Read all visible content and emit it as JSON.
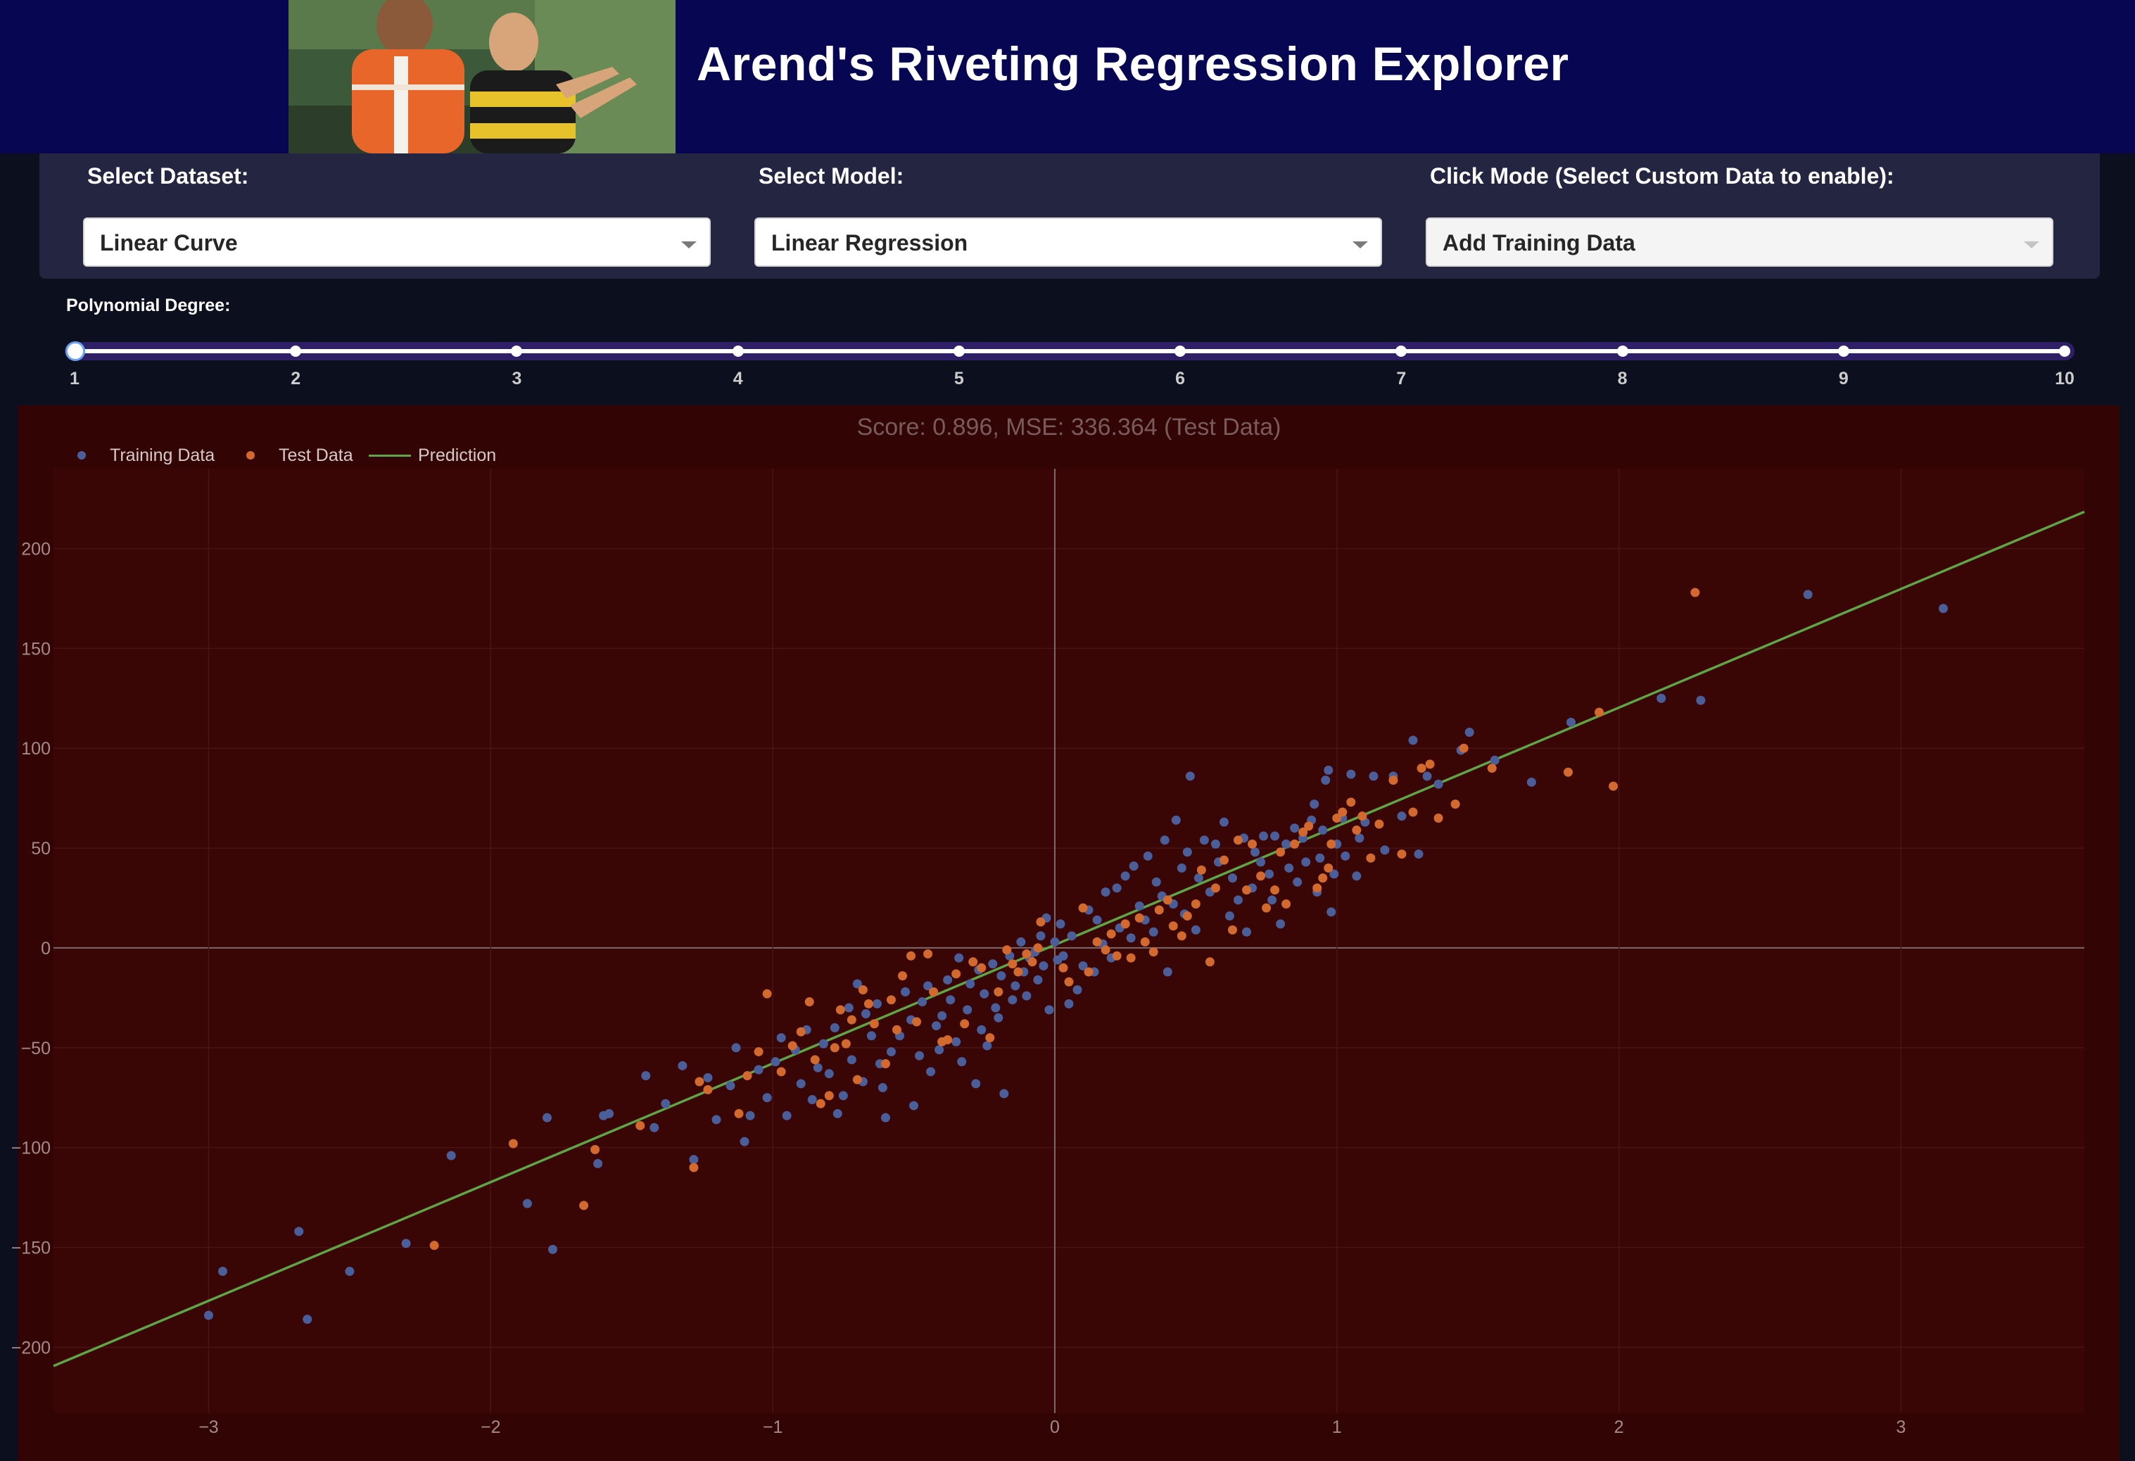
{
  "app": {
    "title": "Arend's Riveting Regression Explorer"
  },
  "controls": {
    "dataset": {
      "label": "Select Dataset:",
      "value": "Linear Curve"
    },
    "model": {
      "label": "Select Model:",
      "value": "Linear Regression"
    },
    "click_mode": {
      "label": "Click Mode (Select Custom Data to enable):",
      "value": "Add Training Data",
      "disabled": true
    }
  },
  "slider": {
    "label": "Polynomial Degree:",
    "min": 1,
    "max": 10,
    "value": 1,
    "marks": [
      "1",
      "2",
      "3",
      "4",
      "5",
      "6",
      "7",
      "8",
      "9",
      "10"
    ]
  },
  "legend": {
    "training": "Training Data",
    "test": "Test Data",
    "prediction": "Prediction"
  },
  "colors": {
    "banner": "#060653",
    "panel": "#232541",
    "plot_bg": "#3a0505",
    "training": "#4a5f9a",
    "test": "#d2692e",
    "prediction": "#5fa546"
  },
  "chart_data": {
    "type": "scatter",
    "title": "Score: 0.896, MSE: 336.364 (Test Data)",
    "xlabel": "",
    "ylabel": "",
    "xlim": [
      -3.55,
      3.65
    ],
    "ylim": [
      -233,
      240
    ],
    "xticks": [
      -3,
      -2,
      -1,
      0,
      1,
      2,
      3
    ],
    "xtick_labels": [
      "−3",
      "−2",
      "−1",
      "0",
      "1",
      "2",
      "3"
    ],
    "yticks": [
      -200,
      -150,
      -100,
      -50,
      0,
      50,
      100,
      150,
      200
    ],
    "ytick_labels": [
      "−200",
      "−150",
      "−100",
      "−50",
      "0",
      "50",
      "100",
      "150",
      "200"
    ],
    "grid": true,
    "legend_position": "top-left",
    "series": [
      {
        "name": "Training Data",
        "mode": "markers",
        "points": [
          [
            -3.0,
            -184
          ],
          [
            -2.95,
            -162
          ],
          [
            -2.68,
            -142
          ],
          [
            -2.65,
            -186
          ],
          [
            -2.5,
            -162
          ],
          [
            -2.3,
            -148
          ],
          [
            -2.14,
            -104
          ],
          [
            -1.87,
            -128
          ],
          [
            -1.8,
            -85
          ],
          [
            -1.78,
            -151
          ],
          [
            -1.62,
            -108
          ],
          [
            -1.6,
            -84
          ],
          [
            -1.58,
            -83
          ],
          [
            -1.45,
            -64
          ],
          [
            -1.42,
            -90
          ],
          [
            -1.38,
            -78
          ],
          [
            -1.32,
            -59
          ],
          [
            -1.28,
            -106
          ],
          [
            -1.23,
            -65
          ],
          [
            -1.2,
            -86
          ],
          [
            -1.15,
            -69
          ],
          [
            -1.13,
            -50
          ],
          [
            -1.1,
            -97
          ],
          [
            -1.08,
            -84
          ],
          [
            -1.05,
            -61
          ],
          [
            -1.02,
            -75
          ],
          [
            -0.99,
            -57
          ],
          [
            -0.97,
            -45
          ],
          [
            -0.95,
            -84
          ],
          [
            -0.92,
            -51
          ],
          [
            -0.9,
            -68
          ],
          [
            -0.88,
            -41
          ],
          [
            -0.86,
            -76
          ],
          [
            -0.84,
            -60
          ],
          [
            -0.82,
            -48
          ],
          [
            -0.8,
            -63
          ],
          [
            -0.78,
            -40
          ],
          [
            -0.77,
            -83
          ],
          [
            -0.75,
            -74
          ],
          [
            -0.73,
            -30
          ],
          [
            -0.72,
            -56
          ],
          [
            -0.7,
            -18
          ],
          [
            -0.68,
            -67
          ],
          [
            -0.67,
            -33
          ],
          [
            -0.65,
            -44
          ],
          [
            -0.63,
            -28
          ],
          [
            -0.62,
            -58
          ],
          [
            -0.61,
            -70
          ],
          [
            -0.6,
            -85
          ],
          [
            -0.58,
            -52
          ],
          [
            -0.55,
            -44
          ],
          [
            -0.53,
            -22
          ],
          [
            -0.51,
            -36
          ],
          [
            -0.5,
            -79
          ],
          [
            -0.48,
            -54
          ],
          [
            -0.47,
            -27
          ],
          [
            -0.45,
            -19
          ],
          [
            -0.44,
            -62
          ],
          [
            -0.42,
            -39
          ],
          [
            -0.41,
            -51
          ],
          [
            -0.4,
            -34
          ],
          [
            -0.38,
            -16
          ],
          [
            -0.37,
            -26
          ],
          [
            -0.35,
            -47
          ],
          [
            -0.34,
            -5
          ],
          [
            -0.33,
            -57
          ],
          [
            -0.31,
            -31
          ],
          [
            -0.3,
            -18
          ],
          [
            -0.28,
            -68
          ],
          [
            -0.27,
            -11
          ],
          [
            -0.26,
            -41
          ],
          [
            -0.25,
            -23
          ],
          [
            -0.24,
            -49
          ],
          [
            -0.22,
            -8
          ],
          [
            -0.21,
            -30
          ],
          [
            -0.2,
            -35
          ],
          [
            -0.19,
            -14
          ],
          [
            -0.18,
            -73
          ],
          [
            -0.16,
            -4
          ],
          [
            -0.15,
            -26
          ],
          [
            -0.14,
            -19
          ],
          [
            -0.12,
            3
          ],
          [
            -0.11,
            -12
          ],
          [
            -0.1,
            -24
          ],
          [
            -0.09,
            -5
          ],
          [
            -0.07,
            -2
          ],
          [
            -0.06,
            -16
          ],
          [
            -0.05,
            6
          ],
          [
            -0.04,
            -9
          ],
          [
            -0.03,
            15
          ],
          [
            -0.02,
            -31
          ],
          [
            0.0,
            3
          ],
          [
            0.01,
            -6
          ],
          [
            0.02,
            12
          ],
          [
            0.03,
            -4
          ],
          [
            0.05,
            -28
          ],
          [
            0.06,
            6
          ],
          [
            0.08,
            -21
          ],
          [
            0.1,
            -9
          ],
          [
            0.12,
            19
          ],
          [
            0.14,
            -12
          ],
          [
            0.15,
            14
          ],
          [
            0.17,
            2
          ],
          [
            0.18,
            28
          ],
          [
            0.2,
            -5
          ],
          [
            0.22,
            30
          ],
          [
            0.23,
            10
          ],
          [
            0.25,
            36
          ],
          [
            0.27,
            5
          ],
          [
            0.28,
            41
          ],
          [
            0.3,
            21
          ],
          [
            0.32,
            14
          ],
          [
            0.33,
            46
          ],
          [
            0.35,
            8
          ],
          [
            0.36,
            33
          ],
          [
            0.38,
            26
          ],
          [
            0.39,
            54
          ],
          [
            0.4,
            -12
          ],
          [
            0.42,
            22
          ],
          [
            0.43,
            64
          ],
          [
            0.45,
            40
          ],
          [
            0.46,
            17
          ],
          [
            0.47,
            48
          ],
          [
            0.48,
            86
          ],
          [
            0.5,
            9
          ],
          [
            0.51,
            35
          ],
          [
            0.53,
            54
          ],
          [
            0.55,
            28
          ],
          [
            0.57,
            52
          ],
          [
            0.58,
            43
          ],
          [
            0.6,
            63
          ],
          [
            0.62,
            16
          ],
          [
            0.63,
            35
          ],
          [
            0.65,
            24
          ],
          [
            0.67,
            55
          ],
          [
            0.68,
            8
          ],
          [
            0.7,
            30
          ],
          [
            0.71,
            48
          ],
          [
            0.73,
            43
          ],
          [
            0.74,
            56
          ],
          [
            0.76,
            37
          ],
          [
            0.77,
            24
          ],
          [
            0.78,
            56
          ],
          [
            0.8,
            12
          ],
          [
            0.82,
            52
          ],
          [
            0.83,
            40
          ],
          [
            0.85,
            60
          ],
          [
            0.86,
            33
          ],
          [
            0.88,
            55
          ],
          [
            0.89,
            43
          ],
          [
            0.91,
            64
          ],
          [
            0.92,
            72
          ],
          [
            0.93,
            28
          ],
          [
            0.94,
            45
          ],
          [
            0.95,
            59
          ],
          [
            0.96,
            84
          ],
          [
            0.97,
            89
          ],
          [
            0.98,
            18
          ],
          [
            0.99,
            37
          ],
          [
            1.0,
            52
          ],
          [
            1.02,
            65
          ],
          [
            1.03,
            46
          ],
          [
            1.05,
            87
          ],
          [
            1.07,
            36
          ],
          [
            1.08,
            55
          ],
          [
            1.1,
            63
          ],
          [
            1.13,
            86
          ],
          [
            1.17,
            49
          ],
          [
            1.2,
            86
          ],
          [
            1.23,
            66
          ],
          [
            1.27,
            104
          ],
          [
            1.29,
            47
          ],
          [
            1.32,
            86
          ],
          [
            1.36,
            82
          ],
          [
            1.44,
            99
          ],
          [
            1.47,
            108
          ],
          [
            1.56,
            94
          ],
          [
            1.69,
            83
          ],
          [
            1.83,
            113
          ],
          [
            2.15,
            125
          ],
          [
            2.29,
            124
          ],
          [
            2.67,
            177
          ],
          [
            3.15,
            170
          ]
        ]
      },
      {
        "name": "Test Data",
        "mode": "markers",
        "points": [
          [
            -2.2,
            -149
          ],
          [
            -1.92,
            -98
          ],
          [
            -1.67,
            -129
          ],
          [
            -1.63,
            -101
          ],
          [
            -1.47,
            -89
          ],
          [
            -1.28,
            -110
          ],
          [
            -1.26,
            -67
          ],
          [
            -1.23,
            -71
          ],
          [
            -1.12,
            -83
          ],
          [
            -1.09,
            -64
          ],
          [
            -1.05,
            -52
          ],
          [
            -1.02,
            -23
          ],
          [
            -0.97,
            -62
          ],
          [
            -0.93,
            -49
          ],
          [
            -0.9,
            -42
          ],
          [
            -0.87,
            -27
          ],
          [
            -0.85,
            -56
          ],
          [
            -0.83,
            -78
          ],
          [
            -0.8,
            -74
          ],
          [
            -0.78,
            -50
          ],
          [
            -0.76,
            -31
          ],
          [
            -0.74,
            -48
          ],
          [
            -0.72,
            -36
          ],
          [
            -0.7,
            -66
          ],
          [
            -0.68,
            -21
          ],
          [
            -0.66,
            -28
          ],
          [
            -0.64,
            -38
          ],
          [
            -0.6,
            -58
          ],
          [
            -0.58,
            -26
          ],
          [
            -0.56,
            -41
          ],
          [
            -0.54,
            -14
          ],
          [
            -0.51,
            -4
          ],
          [
            -0.49,
            -37
          ],
          [
            -0.45,
            -3
          ],
          [
            -0.43,
            -22
          ],
          [
            -0.4,
            -47
          ],
          [
            -0.38,
            -46
          ],
          [
            -0.35,
            -13
          ],
          [
            -0.32,
            -38
          ],
          [
            -0.29,
            -7
          ],
          [
            -0.26,
            -10
          ],
          [
            -0.23,
            -45
          ],
          [
            -0.2,
            -22
          ],
          [
            -0.17,
            -1
          ],
          [
            -0.15,
            -8
          ],
          [
            -0.13,
            -12
          ],
          [
            -0.1,
            -3
          ],
          [
            -0.08,
            -7
          ],
          [
            -0.06,
            0
          ],
          [
            -0.05,
            13
          ],
          [
            0.03,
            -10
          ],
          [
            0.05,
            -17
          ],
          [
            0.1,
            20
          ],
          [
            0.12,
            -12
          ],
          [
            0.15,
            3
          ],
          [
            0.18,
            -1
          ],
          [
            0.2,
            7
          ],
          [
            0.22,
            -4
          ],
          [
            0.25,
            12
          ],
          [
            0.27,
            -5
          ],
          [
            0.3,
            15
          ],
          [
            0.32,
            3
          ],
          [
            0.35,
            -2
          ],
          [
            0.37,
            19
          ],
          [
            0.4,
            24
          ],
          [
            0.42,
            11
          ],
          [
            0.45,
            6
          ],
          [
            0.47,
            16
          ],
          [
            0.5,
            22
          ],
          [
            0.52,
            39
          ],
          [
            0.55,
            -7
          ],
          [
            0.57,
            30
          ],
          [
            0.6,
            44
          ],
          [
            0.63,
            9
          ],
          [
            0.65,
            54
          ],
          [
            0.68,
            29
          ],
          [
            0.7,
            52
          ],
          [
            0.73,
            36
          ],
          [
            0.75,
            20
          ],
          [
            0.78,
            29
          ],
          [
            0.8,
            48
          ],
          [
            0.82,
            22
          ],
          [
            0.85,
            52
          ],
          [
            0.88,
            58
          ],
          [
            0.9,
            61
          ],
          [
            0.93,
            30
          ],
          [
            0.95,
            35
          ],
          [
            0.97,
            40
          ],
          [
            0.98,
            52
          ],
          [
            1.0,
            65
          ],
          [
            1.02,
            68
          ],
          [
            1.05,
            73
          ],
          [
            1.07,
            59
          ],
          [
            1.09,
            66
          ],
          [
            1.12,
            45
          ],
          [
            1.15,
            62
          ],
          [
            1.2,
            84
          ],
          [
            1.23,
            47
          ],
          [
            1.27,
            68
          ],
          [
            1.3,
            90
          ],
          [
            1.33,
            92
          ],
          [
            1.36,
            65
          ],
          [
            1.42,
            72
          ],
          [
            1.45,
            100
          ],
          [
            1.55,
            90
          ],
          [
            1.82,
            88
          ],
          [
            1.93,
            118
          ],
          [
            1.98,
            81
          ],
          [
            2.27,
            178
          ]
        ]
      },
      {
        "name": "Prediction",
        "mode": "lines",
        "x": [
          -3.55,
          3.65
        ],
        "y": [
          -209.4,
          218.4
        ]
      }
    ]
  }
}
